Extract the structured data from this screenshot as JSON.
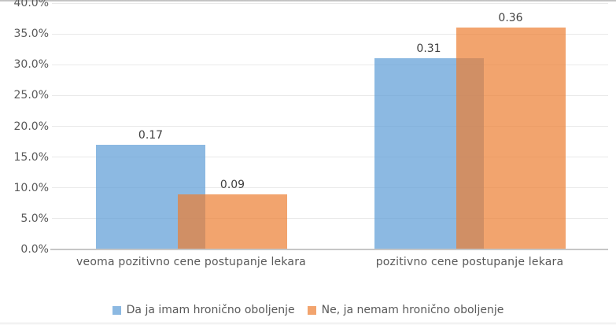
{
  "chart_data": {
    "type": "bar",
    "title": "",
    "categories": [
      "veoma pozitivno cene postupanje lekara",
      "pozitivno cene postupanje lekara"
    ],
    "series": [
      {
        "name": "Da ja imam hronično oboljenje",
        "values": [
          0.17,
          0.31
        ],
        "data_labels": [
          "0.17",
          "0.31"
        ],
        "color": "#5B9BD5",
        "opacity": 0.7
      },
      {
        "name": "Ne, ja nemam hronično oboljenje",
        "values": [
          0.09,
          0.36
        ],
        "data_labels": [
          "0.09",
          "0.36"
        ],
        "color": "#ED7D31",
        "opacity": 0.7
      }
    ],
    "y_axis": {
      "min": 0,
      "max": 0.4,
      "tick_step": 0.05,
      "tick_labels": [
        "0.0%",
        "5.0%",
        "10.0%",
        "15.0%",
        "20.0%",
        "25.0%",
        "30.0%",
        "35.0%",
        "40.0%"
      ]
    },
    "grid": true,
    "legend_position": "bottom",
    "bar_style": "overlapped"
  },
  "colors": {
    "series_blue": "#5B9BD5",
    "series_orange": "#ED7D31",
    "grid_line": "#E9E9E9",
    "axis_line": "#C6C6C6",
    "tick_text": "#595959",
    "value_label_text": "#404040"
  }
}
